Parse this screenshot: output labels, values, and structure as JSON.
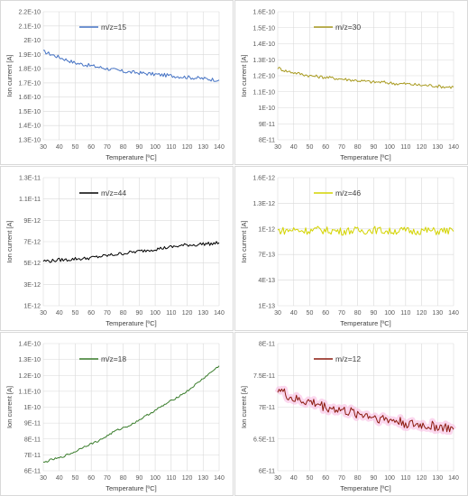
{
  "chart_data": [
    {
      "type": "line",
      "legend": "m/z=15",
      "color": "#4472c4",
      "xlabel": "Temperature [ºC]",
      "ylabel": "Ion current [A]",
      "xlim": [
        30,
        140
      ],
      "ylim": [
        1.3e-10,
        2.2e-10
      ],
      "x_ticks": [
        "30",
        "40",
        "50",
        "60",
        "70",
        "80",
        "90",
        "100",
        "110",
        "120",
        "130",
        "140"
      ],
      "y_ticks": [
        "1.3E-10",
        "1.4E-10",
        "1.5E-10",
        "1.6E-10",
        "1.7E-10",
        "1.8E-10",
        "1.9E-10",
        "2E-10",
        "2.1E-10",
        "2.2E-10"
      ],
      "y_tick_values": [
        1.3e-10,
        1.4e-10,
        1.5e-10,
        1.6e-10,
        1.7e-10,
        1.8e-10,
        1.9e-10,
        2e-10,
        2.1e-10,
        2.2e-10
      ],
      "grid": true,
      "x": [
        30,
        35,
        40,
        45,
        50,
        55,
        60,
        65,
        70,
        75,
        80,
        85,
        90,
        95,
        100,
        105,
        110,
        115,
        120,
        125,
        130,
        135,
        140
      ],
      "y": [
        1.92e-10,
        1.9e-10,
        1.88e-10,
        1.86e-10,
        1.84e-10,
        1.83e-10,
        1.82e-10,
        1.81e-10,
        1.8e-10,
        1.79e-10,
        1.78e-10,
        1.775e-10,
        1.77e-10,
        1.765e-10,
        1.76e-10,
        1.755e-10,
        1.75e-10,
        1.745e-10,
        1.74e-10,
        1.735e-10,
        1.73e-10,
        1.725e-10,
        1.72e-10
      ],
      "noise": 1.3e-12
    },
    {
      "type": "line",
      "legend": "m/z=30",
      "color": "#a99b20",
      "xlabel": "Temperature [ºC]",
      "ylabel": "Ion current [A]",
      "xlim": [
        30,
        140
      ],
      "ylim": [
        8e-11,
        1.6e-10
      ],
      "x_ticks": [
        "30",
        "40",
        "50",
        "60",
        "70",
        "80",
        "90",
        "100",
        "110",
        "120",
        "130",
        "140"
      ],
      "y_ticks": [
        "8E-11",
        "9E-11",
        "1E-10",
        "1.1E-10",
        "1.2E-10",
        "1.3E-10",
        "1.4E-10",
        "1.5E-10",
        "1.6E-10"
      ],
      "y_tick_values": [
        8e-11,
        9e-11,
        1e-10,
        1.1e-10,
        1.2e-10,
        1.3e-10,
        1.4e-10,
        1.5e-10,
        1.6e-10
      ],
      "grid": true,
      "x": [
        30,
        35,
        40,
        45,
        50,
        55,
        60,
        65,
        70,
        75,
        80,
        85,
        90,
        95,
        100,
        105,
        110,
        115,
        120,
        125,
        130,
        135,
        140
      ],
      "y": [
        1.25e-10,
        1.23e-10,
        1.22e-10,
        1.21e-10,
        1.2e-10,
        1.195e-10,
        1.19e-10,
        1.185e-10,
        1.18e-10,
        1.175e-10,
        1.17e-10,
        1.165e-10,
        1.16e-10,
        1.16e-10,
        1.155e-10,
        1.15e-10,
        1.15e-10,
        1.145e-10,
        1.14e-10,
        1.14e-10,
        1.135e-10,
        1.13e-10,
        1.13e-10
      ],
      "noise": 1e-12
    },
    {
      "type": "line",
      "legend": "m/z=44",
      "color": "#000000",
      "xlabel": "Temperature [ºC]",
      "ylabel": "Ion current [A]",
      "xlim": [
        30,
        140
      ],
      "ylim": [
        1e-12,
        1.3e-11
      ],
      "x_ticks": [
        "30",
        "40",
        "50",
        "60",
        "70",
        "80",
        "90",
        "100",
        "110",
        "120",
        "130",
        "140"
      ],
      "y_ticks": [
        "1E-12",
        "3E-12",
        "5E-12",
        "7E-12",
        "9E-12",
        "1.1E-11",
        "1.3E-11"
      ],
      "y_tick_values": [
        1e-12,
        3e-12,
        5e-12,
        7e-12,
        9e-12,
        1.1e-11,
        1.3e-11
      ],
      "grid": true,
      "x": [
        30,
        35,
        40,
        45,
        50,
        55,
        60,
        65,
        70,
        75,
        80,
        85,
        90,
        95,
        100,
        105,
        110,
        115,
        120,
        125,
        130,
        135,
        140
      ],
      "y": [
        5.2e-12,
        5.2e-12,
        5.3e-12,
        5.3e-12,
        5.4e-12,
        5.4e-12,
        5.5e-12,
        5.6e-12,
        5.7e-12,
        5.8e-12,
        5.9e-12,
        6e-12,
        6.1e-12,
        6.2e-12,
        6.3e-12,
        6.4e-12,
        6.5e-12,
        6.6e-12,
        6.7e-12,
        6.7e-12,
        6.8e-12,
        6.8e-12,
        6.9e-12
      ],
      "noise": 1.6e-13
    },
    {
      "type": "line",
      "legend": "m/z=46",
      "color": "#d4d400",
      "xlabel": "Temperature [ºC]",
      "ylabel": "Ion current [A]",
      "xlim": [
        30,
        140
      ],
      "ylim": [
        1e-13,
        1.6e-12
      ],
      "x_ticks": [
        "30",
        "40",
        "50",
        "60",
        "70",
        "80",
        "90",
        "100",
        "110",
        "120",
        "130",
        "140"
      ],
      "y_ticks": [
        "1E-13",
        "4E-13",
        "7E-13",
        "1E-12",
        "1.3E-12",
        "1.6E-12"
      ],
      "y_tick_values": [
        1e-13,
        4e-13,
        7e-13,
        1e-12,
        1.3e-12,
        1.6e-12
      ],
      "grid": true,
      "x": [
        30,
        35,
        40,
        45,
        50,
        55,
        60,
        65,
        70,
        75,
        80,
        85,
        90,
        95,
        100,
        105,
        110,
        115,
        120,
        125,
        130,
        135,
        140
      ],
      "y": [
        9.8e-13,
        9.8e-13,
        9.9e-13,
        9.8e-13,
        9.8e-13,
        9.9e-13,
        9.8e-13,
        9.8e-13,
        9.7e-13,
        9.8e-13,
        9.8e-13,
        9.8e-13,
        9.9e-13,
        9.8e-13,
        9.7e-13,
        9.8e-13,
        9.8e-13,
        9.7e-13,
        9.8e-13,
        9.8e-13,
        9.7e-13,
        9.8e-13,
        9.7e-13
      ],
      "noise": 4.5e-14
    },
    {
      "type": "line",
      "legend": "m/z=18",
      "color": "#3a7d2c",
      "xlabel": "Temperature [ºC]",
      "ylabel": "Ion current [A]",
      "xlim": [
        30,
        140
      ],
      "ylim": [
        6e-11,
        1.4e-10
      ],
      "x_ticks": [
        "30",
        "40",
        "50",
        "60",
        "70",
        "80",
        "90",
        "100",
        "110",
        "120",
        "130",
        "140"
      ],
      "y_ticks": [
        "6E-11",
        "7E-11",
        "8E-11",
        "9E-11",
        "1E-10",
        "1.1E-10",
        "1.2E-10",
        "1.3E-10",
        "1.4E-10"
      ],
      "y_tick_values": [
        6e-11,
        7e-11,
        8e-11,
        9e-11,
        1e-10,
        1.1e-10,
        1.2e-10,
        1.3e-10,
        1.4e-10
      ],
      "grid": true,
      "x": [
        30,
        35,
        40,
        45,
        50,
        55,
        60,
        65,
        70,
        75,
        80,
        85,
        90,
        95,
        100,
        105,
        110,
        115,
        120,
        125,
        130,
        135,
        140
      ],
      "y": [
        6.5e-11,
        6.7e-11,
        6.8e-11,
        7e-11,
        7.2e-11,
        7.5e-11,
        7.7e-11,
        7.9e-11,
        8.2e-11,
        8.5e-11,
        8.7e-11,
        8.9e-11,
        9.2e-11,
        9.5e-11,
        9.8e-11,
        1.01e-10,
        1.04e-10,
        1.07e-10,
        1.1e-10,
        1.14e-10,
        1.18e-10,
        1.22e-10,
        1.26e-10
      ],
      "noise": 6e-13
    },
    {
      "type": "line",
      "legend": "m/z=12",
      "color": "#8b1a0e",
      "band_color": "#f7b6e0",
      "xlabel": "Temperature [ºC]",
      "ylabel": "Ion current [A]",
      "xlim": [
        30,
        140
      ],
      "ylim": [
        6e-11,
        8e-11
      ],
      "x_ticks": [
        "30",
        "40",
        "50",
        "60",
        "70",
        "80",
        "90",
        "100",
        "110",
        "120",
        "130",
        "140"
      ],
      "y_ticks": [
        "6E-11",
        "6.5E-11",
        "7E-11",
        "7.5E-11",
        "8E-11"
      ],
      "y_tick_values": [
        6e-11,
        6.5e-11,
        7e-11,
        7.5e-11,
        8e-11
      ],
      "grid": true,
      "x": [
        30,
        35,
        40,
        45,
        50,
        55,
        60,
        65,
        70,
        75,
        80,
        85,
        90,
        95,
        100,
        105,
        110,
        115,
        120,
        125,
        130,
        135,
        140
      ],
      "y": [
        7.3e-11,
        7.2e-11,
        7.12e-11,
        7.1e-11,
        7.08e-11,
        7.05e-11,
        7e-11,
        6.98e-11,
        6.95e-11,
        6.92e-11,
        6.9e-11,
        6.88e-11,
        6.85e-11,
        6.82e-11,
        6.8e-11,
        6.78e-11,
        6.75e-11,
        6.72e-11,
        6.72e-11,
        6.7e-11,
        6.7e-11,
        6.68e-11,
        6.65e-11
      ],
      "noise": 8e-13
    }
  ]
}
